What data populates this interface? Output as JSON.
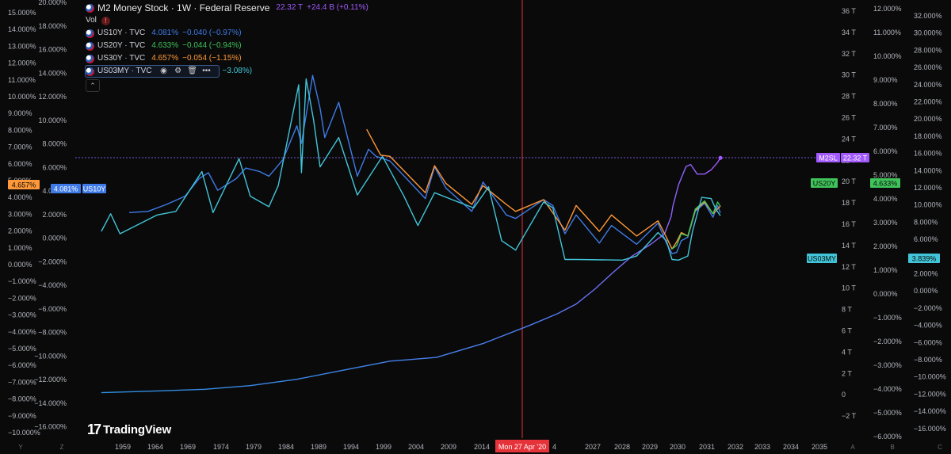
{
  "legend": {
    "main": {
      "title": "M2 Money Stock · 1W · Federal Reserve",
      "value": "22.32 T",
      "change": "+24.4 B (+0.11%)",
      "color": "#a259ff"
    },
    "vol_label": "Vol",
    "vol_icon": "alert-icon",
    "series": [
      {
        "symbol": "US10Y · TVC",
        "value": "4.081%",
        "change": "−0.040 (−0.97%)",
        "color": "#3f7be8"
      },
      {
        "symbol": "US20Y · TVC",
        "value": "4.633%",
        "change": "−0.044 (−0.94%)",
        "color": "#3fc35a"
      },
      {
        "symbol": "US30Y · TVC",
        "value": "4.657%",
        "change": "−0.054 (−1.15%)",
        "color": "#ff9838"
      },
      {
        "symbol": "US03MY · TVC",
        "value": "",
        "change": "−3.08%)",
        "color": "#42c5d8"
      }
    ],
    "icons": [
      "eye-icon",
      "settings-icon",
      "delete-icon",
      "more-icon"
    ],
    "collapse_icon": "chevron-up-icon"
  },
  "branding": {
    "logo_text": "TradingView",
    "logo_mark": "17"
  },
  "crosshair": {
    "date_label": "Mon 27 Apr '20"
  },
  "chart_data": {
    "type": "line",
    "x_tick_labels": [
      "1959",
      "1964",
      "1969",
      "1974",
      "1979",
      "1984",
      "1989",
      "1994",
      "1999",
      "2004",
      "2009",
      "2014",
      "2020",
      "2027",
      "2028",
      "2029",
      "2030",
      "2031",
      "2032",
      "2033",
      "2034",
      "2035"
    ],
    "left_axis_a": [
      "15.000%",
      "14.000%",
      "13.000%",
      "12.000%",
      "11.000%",
      "10.000%",
      "9.000%",
      "8.000%",
      "7.000%",
      "6.000%",
      "5.000%",
      "4.000%",
      "3.000%",
      "2.000%",
      "1.000%",
      "0.000%",
      "−1.000%",
      "−2.000%",
      "−3.000%",
      "−4.000%",
      "−5.000%",
      "−6.000%",
      "−7.000%",
      "−8.000%",
      "−9.000%",
      "−10.000%"
    ],
    "left_axis_b": [
      "20.000%",
      "18.000%",
      "16.000%",
      "14.000%",
      "12.000%",
      "10.000%",
      "8.000%",
      "6.000%",
      "4.000%",
      "2.000%",
      "0.000%",
      "−2.000%",
      "−4.000%",
      "−6.000%",
      "−8.000%",
      "−10.000%",
      "−12.000%",
      "−14.000%",
      "−16.000%"
    ],
    "right_axis_a": [
      "36 T",
      "34 T",
      "32 T",
      "30 T",
      "28 T",
      "26 T",
      "24 T",
      "22 T",
      "20 T",
      "18 T",
      "16 T",
      "14 T",
      "12 T",
      "10 T",
      "8 T",
      "6 T",
      "4 T",
      "2 T",
      "0",
      "−2 T"
    ],
    "right_axis_b": [
      "12.000%",
      "11.000%",
      "10.000%",
      "9.000%",
      "8.000%",
      "7.000%",
      "6.000%",
      "5.000%",
      "4.000%",
      "3.000%",
      "2.000%",
      "1.000%",
      "0.000%",
      "−1.000%",
      "−2.000%",
      "−3.000%",
      "−4.000%",
      "−5.000%",
      "−6.000%"
    ],
    "right_axis_c": [
      "32.000%",
      "30.000%",
      "28.000%",
      "26.000%",
      "24.000%",
      "22.000%",
      "20.000%",
      "18.000%",
      "16.000%",
      "14.000%",
      "12.000%",
      "10.000%",
      "8.000%",
      "6.000%",
      "4.000%",
      "2.000%",
      "0.000%",
      "−2.000%",
      "−4.000%",
      "−6.000%",
      "−8.000%",
      "−10.000%",
      "−12.000%",
      "−14.000%",
      "−16.000%"
    ],
    "axis_footer_labels": [
      "Y",
      "Z",
      "A",
      "B",
      "C"
    ],
    "price_labels": [
      {
        "text": "4.657%",
        "color": "#ff9838",
        "axis": "left"
      },
      {
        "text": "4.081%",
        "color": "#3f7be8",
        "axis": "left"
      },
      {
        "text": "US10Y",
        "color": "#3f7be8",
        "axis": "left"
      },
      {
        "text": "M2SL",
        "color": "#a259ff",
        "axis": "right"
      },
      {
        "text": "22.32 T",
        "color": "#a259ff",
        "axis": "right"
      },
      {
        "text": "US20Y",
        "color": "#3fc35a",
        "axis": "right"
      },
      {
        "text": "4.633%",
        "color": "#3fc35a",
        "axis": "right"
      },
      {
        "text": "US03MY",
        "color": "#42c5d8",
        "axis": "right"
      },
      {
        "text": "3.839%",
        "color": "#42c5d8",
        "axis": "right"
      }
    ],
    "x_range": [
      1956.2,
      2037.5
    ],
    "series": [
      {
        "name": "M2SL",
        "unit": "T",
        "color": "#a259ff",
        "points": [
          [
            1959.0,
            0.29
          ],
          [
            1965,
            0.45
          ],
          [
            1970,
            0.6
          ],
          [
            1975,
            0.95
          ],
          [
            1980,
            1.55
          ],
          [
            1985,
            2.4
          ],
          [
            1990,
            3.25
          ],
          [
            1995,
            3.6
          ],
          [
            2000,
            4.9
          ],
          [
            2005,
            6.6
          ],
          [
            2008,
            7.7
          ],
          [
            2010,
            8.6
          ],
          [
            2012,
            10.0
          ],
          [
            2014,
            11.6
          ],
          [
            2016,
            13.1
          ],
          [
            2018,
            14.2
          ],
          [
            2019.5,
            15.2
          ],
          [
            2020.2,
            16.8
          ],
          [
            2020.4,
            17.8
          ],
          [
            2021,
            19.8
          ],
          [
            2021.8,
            21.5
          ],
          [
            2022.3,
            21.7
          ],
          [
            2023,
            20.8
          ],
          [
            2023.8,
            20.8
          ],
          [
            2024.5,
            21.2
          ],
          [
            2025.2,
            21.9
          ],
          [
            2025.5,
            22.32
          ]
        ]
      },
      {
        "name": "US10Y",
        "unit": "%",
        "color": "#3f7be8",
        "points": [
          [
            1962,
            4.1
          ],
          [
            1964,
            4.2
          ],
          [
            1966,
            4.8
          ],
          [
            1968,
            5.5
          ],
          [
            1969.5,
            7.0
          ],
          [
            1970.5,
            7.5
          ],
          [
            1971.5,
            6.0
          ],
          [
            1973.5,
            7.0
          ],
          [
            1974.5,
            7.9
          ],
          [
            1976,
            7.6
          ],
          [
            1977,
            7.2
          ],
          [
            1978.5,
            8.6
          ],
          [
            1980,
            11.5
          ],
          [
            1980.5,
            10.0
          ],
          [
            1981.7,
            15.8
          ],
          [
            1982.5,
            13.0
          ],
          [
            1983,
            10.5
          ],
          [
            1984.5,
            13.5
          ],
          [
            1986.5,
            7.2
          ],
          [
            1987.7,
            9.5
          ],
          [
            1988.5,
            8.9
          ],
          [
            1990,
            8.5
          ],
          [
            1993.8,
            5.3
          ],
          [
            1994.8,
            8.0
          ],
          [
            1996,
            6.2
          ],
          [
            1998.8,
            4.2
          ],
          [
            2000,
            6.7
          ],
          [
            2002.5,
            3.9
          ],
          [
            2003.5,
            3.6
          ],
          [
            2006.5,
            5.2
          ],
          [
            2007.5,
            4.7
          ],
          [
            2008.8,
            2.3
          ],
          [
            2010,
            3.9
          ],
          [
            2012.5,
            1.5
          ],
          [
            2013.8,
            3.0
          ],
          [
            2016.5,
            1.4
          ],
          [
            2018.8,
            3.2
          ],
          [
            2019.7,
            1.5
          ],
          [
            2020.3,
            0.6
          ],
          [
            2020.8,
            0.7
          ],
          [
            2021.3,
            1.7
          ],
          [
            2022,
            2.0
          ],
          [
            2022.8,
            4.2
          ],
          [
            2023.8,
            4.9
          ],
          [
            2024.7,
            3.7
          ],
          [
            2025.2,
            4.7
          ],
          [
            2025.5,
            4.081
          ]
        ]
      },
      {
        "name": "US30Y",
        "unit": "%",
        "color": "#ff9838",
        "points": [
          [
            1987.5,
            11.2
          ],
          [
            1989,
            9.0
          ],
          [
            1990,
            8.9
          ],
          [
            1993.8,
            5.8
          ],
          [
            1994.8,
            8.1
          ],
          [
            1996,
            6.6
          ],
          [
            1998.8,
            4.8
          ],
          [
            2000,
            6.4
          ],
          [
            2002.5,
            4.8
          ],
          [
            2003.5,
            4.2
          ],
          [
            2006.5,
            5.2
          ],
          [
            2008.8,
            2.6
          ],
          [
            2010,
            4.7
          ],
          [
            2012.5,
            2.5
          ],
          [
            2013.8,
            3.9
          ],
          [
            2016.5,
            2.1
          ],
          [
            2018.8,
            3.4
          ],
          [
            2019.7,
            2.0
          ],
          [
            2020.3,
            1.0
          ],
          [
            2020.8,
            1.6
          ],
          [
            2021.3,
            2.4
          ],
          [
            2022,
            2.1
          ],
          [
            2022.8,
            4.3
          ],
          [
            2023.8,
            5.0
          ],
          [
            2024.7,
            4.0
          ],
          [
            2025.5,
            4.657
          ]
        ]
      },
      {
        "name": "US20Y",
        "unit": "%",
        "color": "#3fc35a",
        "points": [
          [
            2020.3,
            1.0
          ],
          [
            2020.8,
            1.3
          ],
          [
            2021.3,
            2.3
          ],
          [
            2022,
            2.1
          ],
          [
            2022.8,
            4.4
          ],
          [
            2023.8,
            5.1
          ],
          [
            2024.7,
            4.0
          ],
          [
            2025.2,
            5.0
          ],
          [
            2025.5,
            4.633
          ]
        ]
      },
      {
        "name": "US03MY",
        "unit": "%",
        "color": "#42c5d8",
        "points": [
          [
            1959,
            2.5
          ],
          [
            1960,
            4.0
          ],
          [
            1961,
            2.3
          ],
          [
            1965,
            3.9
          ],
          [
            1967,
            4.2
          ],
          [
            1969.8,
            7.6
          ],
          [
            1971,
            4.1
          ],
          [
            1973.8,
            8.7
          ],
          [
            1975,
            5.5
          ],
          [
            1977,
            4.6
          ],
          [
            1978,
            6.4
          ],
          [
            1980.2,
            15.0
          ],
          [
            1980.5,
            7.5
          ],
          [
            1981,
            15.5
          ],
          [
            1981.8,
            12.0
          ],
          [
            1982.5,
            8.0
          ],
          [
            1984.5,
            10.5
          ],
          [
            1986.5,
            5.6
          ],
          [
            1989.2,
            8.9
          ],
          [
            1991.5,
            5.5
          ],
          [
            1993,
            3.0
          ],
          [
            1994.8,
            5.8
          ],
          [
            1997,
            5.1
          ],
          [
            1999,
            4.5
          ],
          [
            2000.6,
            6.3
          ],
          [
            2002,
            1.7
          ],
          [
            2003.5,
            0.9
          ],
          [
            2006.5,
            5.0
          ],
          [
            2007.5,
            4.5
          ],
          [
            2008.8,
            0.1
          ],
          [
            2010,
            0.1
          ],
          [
            2015,
            0.05
          ],
          [
            2016.5,
            0.4
          ],
          [
            2018.8,
            2.4
          ],
          [
            2019.7,
            1.7
          ],
          [
            2020.3,
            0.1
          ],
          [
            2021,
            0.05
          ],
          [
            2022,
            0.4
          ],
          [
            2022.5,
            2.5
          ],
          [
            2023.5,
            5.4
          ],
          [
            2024.5,
            5.3
          ],
          [
            2025,
            4.4
          ],
          [
            2025.5,
            3.839
          ]
        ]
      }
    ]
  }
}
